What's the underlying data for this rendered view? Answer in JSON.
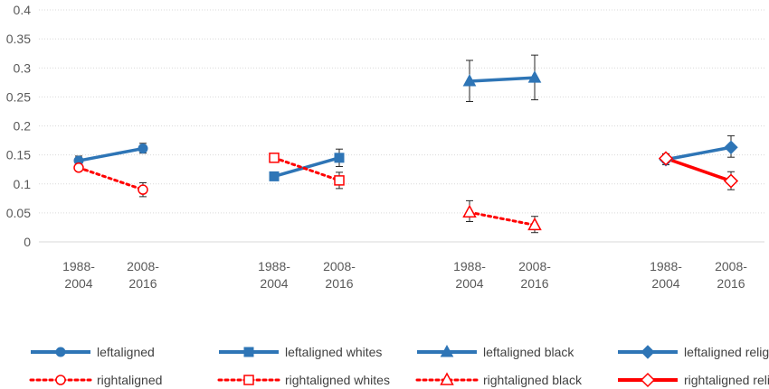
{
  "chart_data": {
    "type": "line",
    "title": "",
    "xlabel": "",
    "ylabel": "",
    "ylim": [
      0,
      0.4
    ],
    "y_ticks": [
      "0",
      "0.05",
      "0.1",
      "0.15",
      "0.2",
      "0.25",
      "0.3",
      "0.35",
      "0.4"
    ],
    "grid": true,
    "legend_position": "bottom",
    "groups": [
      {
        "categories": [
          {
            "line1": "1988-",
            "line2": "2004"
          },
          {
            "line1": "2008-",
            "line2": "2016"
          }
        ]
      },
      {
        "categories": [
          {
            "line1": "1988-",
            "line2": "2004"
          },
          {
            "line1": "2008-",
            "line2": "2016"
          }
        ]
      },
      {
        "categories": [
          {
            "line1": "1988-",
            "line2": "2004"
          },
          {
            "line1": "2008-",
            "line2": "2016"
          }
        ]
      },
      {
        "categories": [
          {
            "line1": "1988-",
            "line2": "2004"
          },
          {
            "line1": "2008-",
            "line2": "2016"
          }
        ]
      }
    ],
    "series": [
      {
        "name": "leftaligned",
        "group": 0,
        "style": "solid",
        "marker": "circle",
        "color": "#2E75B6",
        "values": [
          0.14,
          0.161
        ],
        "error": [
          [
            0.133,
            0.148
          ],
          [
            0.153,
            0.17
          ]
        ]
      },
      {
        "name": "rightaligned",
        "group": 0,
        "style": "dotted",
        "marker": "circle-open",
        "color": "#FF0000",
        "values": [
          0.128,
          0.09
        ],
        "error": [
          [
            0.123,
            0.133
          ],
          [
            0.078,
            0.102
          ]
        ]
      },
      {
        "name": "leftaligned whites",
        "group": 1,
        "style": "solid",
        "marker": "square",
        "color": "#2E75B6",
        "values": [
          0.113,
          0.145
        ],
        "error": [
          [
            0.11,
            0.116
          ],
          [
            0.13,
            0.16
          ]
        ]
      },
      {
        "name": "rightaligned whites",
        "group": 1,
        "style": "dotted",
        "marker": "square-open",
        "color": "#FF0000",
        "values": [
          0.145,
          0.106
        ],
        "error": [
          [
            0.14,
            0.15
          ],
          [
            0.092,
            0.12
          ]
        ]
      },
      {
        "name": "leftaligned black",
        "group": 2,
        "style": "solid",
        "marker": "triangle",
        "color": "#2E75B6",
        "values": [
          0.277,
          0.283
        ],
        "error": [
          [
            0.242,
            0.313
          ],
          [
            0.245,
            0.322
          ]
        ]
      },
      {
        "name": "rightaligned black",
        "group": 2,
        "style": "dotted",
        "marker": "triangle-open",
        "color": "#FF0000",
        "values": [
          0.051,
          0.029
        ],
        "error": [
          [
            0.035,
            0.071
          ],
          [
            0.016,
            0.044
          ]
        ]
      },
      {
        "name": "leftaligned relig",
        "group": 3,
        "style": "solid",
        "marker": "diamond",
        "color": "#2E75B6",
        "values": [
          0.142,
          0.163
        ],
        "error": [
          [
            0.133,
            0.152
          ],
          [
            0.146,
            0.183
          ]
        ]
      },
      {
        "name": "rightaligned relig",
        "group": 3,
        "style": "solid",
        "marker": "diamond-open",
        "color": "#FF0000",
        "values": [
          0.144,
          0.105
        ],
        "error": [
          [
            0.136,
            0.151
          ],
          [
            0.09,
            0.121
          ]
        ]
      }
    ]
  }
}
